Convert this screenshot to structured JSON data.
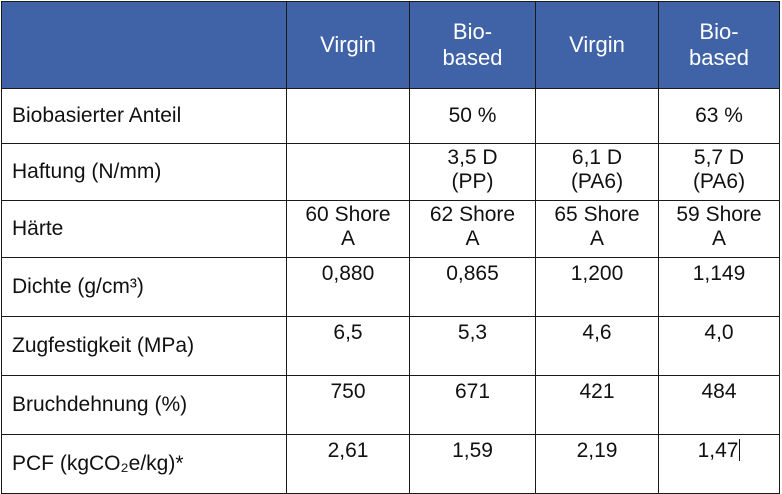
{
  "table": {
    "headers": [
      "",
      "Virgin",
      "Bio-\nbased",
      "Virgin",
      "Bio-\nbased"
    ],
    "rows": [
      {
        "label": "Biobasierter Anteil",
        "values": [
          "",
          "50 %",
          "",
          "63 %"
        ]
      },
      {
        "label": "Haftung (N/mm)",
        "values": [
          "",
          "3,5 D\n(PP)",
          "6,1 D\n(PA6)",
          "5,7 D\n(PA6)"
        ]
      },
      {
        "label": "Härte",
        "values": [
          "60 Shore\nA",
          "62 Shore\nA",
          "65 Shore\nA",
          "59 Shore\nA"
        ]
      },
      {
        "label": "Dichte (g/cm³)",
        "values": [
          "0,880",
          "0,865",
          "1,200",
          "1,149"
        ]
      },
      {
        "label": "Zugfestigkeit (MPa)",
        "values": [
          "6,5",
          "5,3",
          "4,6",
          "4,0"
        ]
      },
      {
        "label": "Bruchdehnung (%)",
        "values": [
          "750",
          "671",
          "421",
          "484"
        ]
      },
      {
        "label": "PCF (kgCO₂e/kg)*",
        "values": [
          "2,61",
          "1,59",
          "2,19",
          "1,47"
        ]
      }
    ]
  },
  "colors": {
    "header_bg": "#3f63a6",
    "header_text": "#ffffff",
    "border": "#1a1a1a",
    "text": "#111111"
  }
}
